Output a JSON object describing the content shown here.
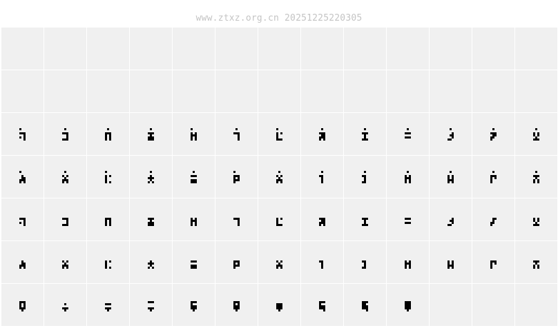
{
  "header": {
    "watermark": "www.ztxz.org.cn 20251225220305"
  },
  "colors": {
    "cell_bg": "#f0f0f0",
    "glyph": "#000000",
    "watermark": "#c4c4c4"
  },
  "grid": {
    "columns": 13,
    "rows": [
      [
        "",
        "",
        "",
        "",
        "",
        "",
        "",
        "",
        "",
        "",
        "",
        "",
        ""
      ],
      [
        "",
        "",
        "",
        "",
        "",
        "",
        "",
        "",
        "",
        "",
        "",
        "",
        ""
      ],
      [
        "100|000|111|001|101|001",
        "010|000|111|001|001|111",
        "010|000|111|101|101|101",
        "010|000|111|010|111|111",
        "100|000|101|111|101|101",
        "010|000|111|001|001|001",
        "100|000|101|100|100|111",
        "010|000|111|011|111|101",
        "010|000|111|010|010|111",
        "010|000|111|000|111|000",
        "010|000|001|011|001|110",
        "010|000|111|011|110|100",
        "010|000|101|101|010|111"
      ],
      [
        "100|000|010|011|111|101",
        "010|000|101|010|111|101",
        "100|000|101|100|100|101",
        "010|000|010|111|010|101",
        "010|000|111|000|111|111",
        "100|000|111|101|111|100",
        "010|000|101|010|111|101",
        "010|000|110|010|010|010",
        "010|000|110|010|010|110",
        "010|000|101|111|101|101",
        "010|000|101|101|111|101",
        "010|000|111|101|100|100",
        "010|000|111|010|101|101"
      ],
      [
        "000|000|111|001|101|001",
        "000|000|111|001|001|111",
        "000|000|111|101|101|101",
        "000|000|111|010|111|111",
        "000|000|101|111|101|101",
        "000|000|111|001|001|001",
        "000|000|101|100|100|111",
        "000|000|111|011|111|101",
        "000|000|111|010|010|111",
        "000|000|111|000|111|000",
        "000|000|001|011|001|110",
        "000|000|011|010|110|100",
        "000|000|101|101|010|111"
      ],
      [
        "000|000|010|011|111|101",
        "000|000|101|010|111|101",
        "000|000|101|100|100|101",
        "000|000|010|111|010|101",
        "000|000|111|000|111|111",
        "000|000|111|101|111|100",
        "000|000|101|010|111|101",
        "000|000|110|010|010|010",
        "000|000|110|010|010|110",
        "000|000|101|111|101|101",
        "000|000|101|101|111|101",
        "000|000|111|101|100|100",
        "000|000|111|010|101|101"
      ],
      [
        "000|111|101|101|111|010",
        "000|000|010|000|111|010",
        "000|000|111|000|111|010",
        "000|111|000|000|111|010",
        "000|111|100|111|111|010",
        "000|111|101|111|111|010",
        "000|000|111|111|111|010",
        "000|111|100|111|111|001",
        "000|111|110|111|111|001",
        "000|111|111|111|111|010",
        "",
        "",
        ""
      ]
    ]
  }
}
